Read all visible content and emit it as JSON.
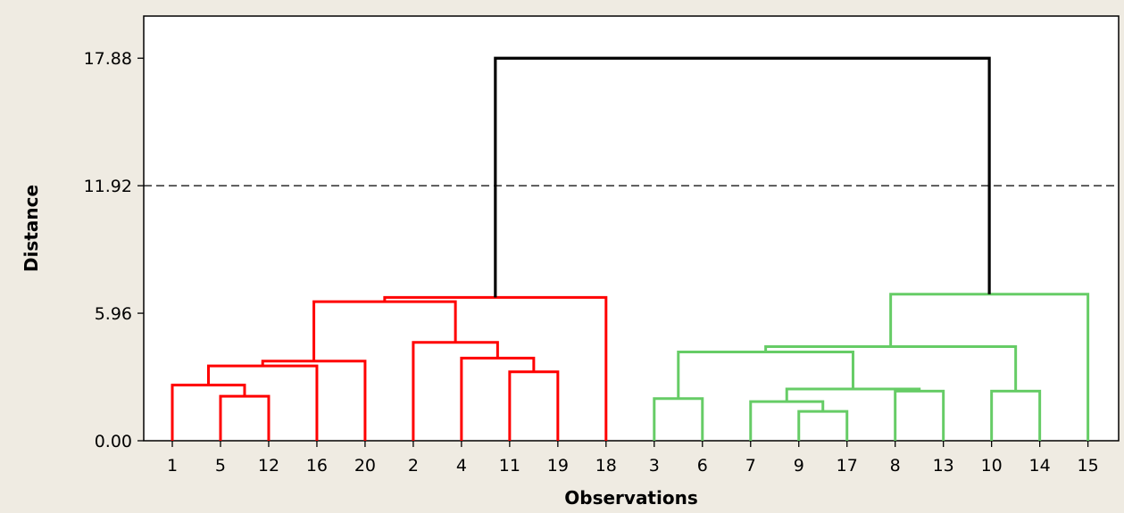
{
  "chart_data": {
    "type": "dendrogram",
    "xlabel": "Observations",
    "ylabel": "Distance",
    "ylim": [
      0,
      19.25
    ],
    "yticks": [
      "0.00",
      "5.96",
      "11.92",
      "17.88"
    ],
    "cut_line": 11.92,
    "leaf_order": [
      "1",
      "5",
      "12",
      "16",
      "20",
      "2",
      "4",
      "11",
      "19",
      "18",
      "3",
      "6",
      "7",
      "9",
      "17",
      "8",
      "13",
      "10",
      "14",
      "15"
    ],
    "colors": {
      "cluster_1": "#ff0000",
      "cluster_2": "#66cc66",
      "root": "#000000",
      "cut_line": "#000000"
    },
    "links": [
      {
        "left": "5",
        "right": "12",
        "height": 2.08,
        "group": "cluster_1"
      },
      {
        "left": "1",
        "right": "5-12",
        "height": 2.6,
        "group": "cluster_1"
      },
      {
        "left": "1-5-12",
        "right": "16",
        "height": 3.5,
        "group": "cluster_1"
      },
      {
        "left": "1-5-12-16",
        "right": "20",
        "height": 3.72,
        "group": "cluster_1"
      },
      {
        "left": "11",
        "right": "19",
        "height": 3.22,
        "group": "cluster_1"
      },
      {
        "left": "4",
        "right": "11-19",
        "height": 3.86,
        "group": "cluster_1"
      },
      {
        "left": "2",
        "right": "4-11-19",
        "height": 4.6,
        "group": "cluster_1"
      },
      {
        "left": "1-5-12-16-20",
        "right": "2-4-11-19",
        "height": 6.5,
        "group": "cluster_1"
      },
      {
        "left": "1..19",
        "right": "18",
        "height": 6.7,
        "group": "cluster_1"
      },
      {
        "left": "3",
        "right": "6",
        "height": 1.97,
        "group": "cluster_2"
      },
      {
        "left": "9",
        "right": "17",
        "height": 1.37,
        "group": "cluster_2"
      },
      {
        "left": "7",
        "right": "9-17",
        "height": 1.83,
        "group": "cluster_2"
      },
      {
        "left": "8",
        "right": "13",
        "height": 2.32,
        "group": "cluster_2"
      },
      {
        "left": "7-9-17",
        "right": "8-13",
        "height": 2.42,
        "group": "cluster_2"
      },
      {
        "left": "3-6",
        "right": "7-9-17-8-13",
        "height": 4.15,
        "group": "cluster_2"
      },
      {
        "left": "10",
        "right": "14",
        "height": 2.32,
        "group": "cluster_2"
      },
      {
        "left": "3..13",
        "right": "10-14",
        "height": 4.4,
        "group": "cluster_2"
      },
      {
        "left": "3..14",
        "right": "15",
        "height": 6.85,
        "group": "cluster_2"
      },
      {
        "left": "cluster_1",
        "right": "cluster_2",
        "height": 17.88,
        "group": "root"
      }
    ]
  }
}
